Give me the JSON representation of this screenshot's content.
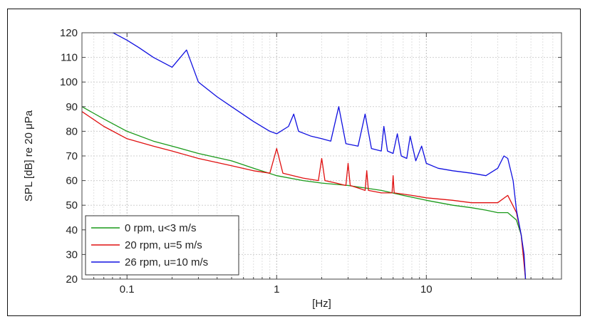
{
  "chart_data": {
    "type": "line",
    "title": "",
    "xlabel": "[Hz]",
    "ylabel": "SPL [dB] re 20 μPa",
    "xscale": "log",
    "xlim": [
      0.05,
      80
    ],
    "ylim": [
      20,
      120
    ],
    "grid": true,
    "legend_position": "bottom-left",
    "xticks": [
      {
        "v": 0.1,
        "label": "0.1"
      },
      {
        "v": 1,
        "label": "1"
      },
      {
        "v": 10,
        "label": "10"
      }
    ],
    "yticks": [
      {
        "v": 20,
        "label": "20"
      },
      {
        "v": 30,
        "label": "30"
      },
      {
        "v": 40,
        "label": "40"
      },
      {
        "v": 50,
        "label": "50"
      },
      {
        "v": 60,
        "label": "60"
      },
      {
        "v": 70,
        "label": "70"
      },
      {
        "v": 80,
        "label": "80"
      },
      {
        "v": 90,
        "label": "90"
      },
      {
        "v": 100,
        "label": "100"
      },
      {
        "v": 110,
        "label": "110"
      },
      {
        "v": 120,
        "label": "120"
      }
    ],
    "series": [
      {
        "name": "0 rpm, u<3 m/s",
        "color": "#1a9a1a",
        "x": [
          0.05,
          0.07,
          0.1,
          0.15,
          0.2,
          0.3,
          0.5,
          0.7,
          1,
          1.5,
          2,
          3,
          5,
          7,
          10,
          15,
          20,
          25,
          30,
          35,
          40,
          43,
          45,
          46
        ],
        "y": [
          90,
          85,
          80,
          76,
          74,
          71,
          68,
          65,
          62,
          60,
          59,
          58,
          56,
          54,
          52,
          50,
          49,
          48,
          47,
          47,
          44,
          38,
          28,
          20
        ]
      },
      {
        "name": "20 rpm, u=5 m/s",
        "color": "#e01010",
        "x": [
          0.05,
          0.07,
          0.1,
          0.15,
          0.2,
          0.3,
          0.5,
          0.7,
          0.9,
          1.0,
          1.1,
          1.5,
          1.9,
          2.0,
          2.1,
          2.5,
          2.9,
          3.0,
          3.1,
          3.5,
          3.9,
          4.0,
          4.1,
          5,
          5.9,
          6.0,
          6.1,
          8,
          10,
          15,
          20,
          25,
          30,
          35,
          40,
          43,
          45,
          46
        ],
        "y": [
          88,
          82,
          77,
          74,
          72,
          69,
          66,
          64,
          63,
          73,
          63,
          61,
          60,
          69,
          60,
          59,
          58,
          67,
          58,
          57,
          56,
          64,
          56,
          55,
          55,
          62,
          55,
          54,
          53,
          52,
          51,
          51,
          51,
          54,
          47,
          38,
          26,
          20
        ]
      },
      {
        "name": "26 rpm, u=10 m/s",
        "color": "#1010e0",
        "x": [
          0.05,
          0.07,
          0.1,
          0.12,
          0.15,
          0.2,
          0.25,
          0.3,
          0.4,
          0.5,
          0.7,
          0.9,
          1.0,
          1.2,
          1.3,
          1.4,
          1.7,
          2.0,
          2.3,
          2.6,
          2.9,
          3.5,
          3.9,
          4.3,
          5.0,
          5.2,
          5.5,
          6.0,
          6.4,
          6.8,
          7.4,
          7.8,
          8.5,
          9.3,
          10,
          12,
          15,
          20,
          25,
          30,
          33,
          35,
          38,
          40,
          43,
          45,
          46
        ],
        "y": [
          128,
          122,
          117,
          114,
          110,
          106,
          113,
          100,
          94,
          90,
          84,
          80,
          79,
          82,
          87,
          80,
          78,
          77,
          76,
          90,
          75,
          74,
          87,
          73,
          72,
          82,
          72,
          71,
          79,
          70,
          69,
          78,
          68,
          74,
          67,
          65,
          64,
          63,
          62,
          65,
          70,
          69,
          60,
          48,
          38,
          30,
          20
        ]
      }
    ]
  }
}
